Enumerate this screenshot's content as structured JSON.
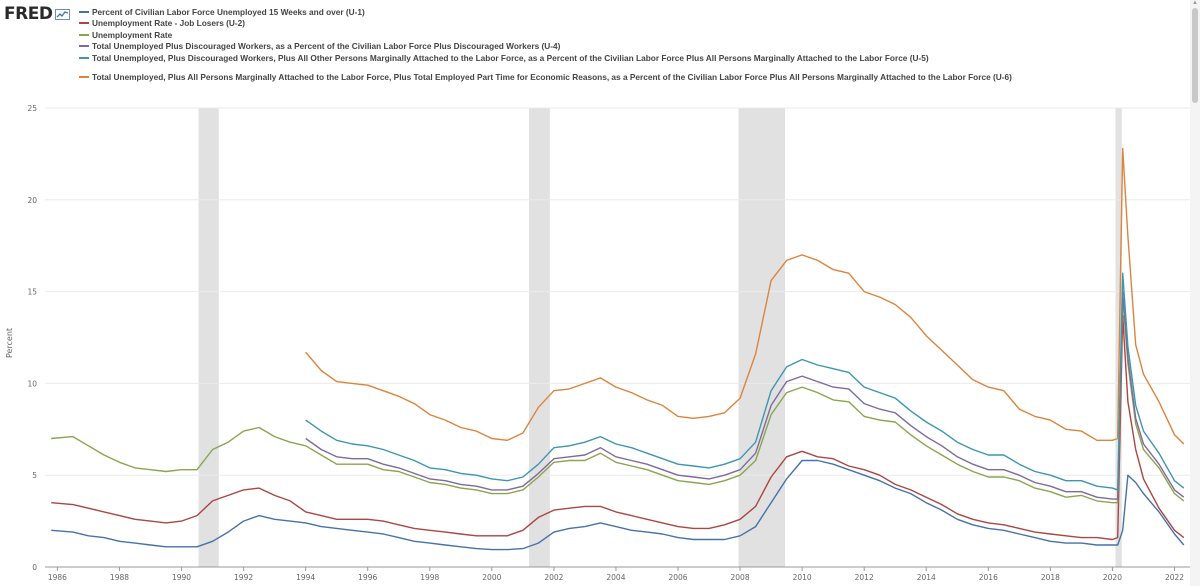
{
  "brand": {
    "logo_text": "FRED",
    "logo_icon": "chart-trend-icon"
  },
  "chart_data": {
    "type": "line",
    "ylabel": "Percent",
    "xlim": [
      1985.6,
      2022.5
    ],
    "ylim": [
      0,
      25
    ],
    "yticks": [
      0,
      5,
      10,
      15,
      20,
      25
    ],
    "xticks": [
      "1986",
      "1988",
      "1990",
      "1992",
      "1994",
      "1996",
      "1998",
      "2000",
      "2002",
      "2004",
      "2006",
      "2008",
      "2010",
      "2012",
      "2014",
      "2016",
      "2018",
      "2020",
      "2022"
    ],
    "grid": true,
    "legend_position": "top-left",
    "recessions": [
      [
        1990.55,
        1991.2
      ],
      [
        2001.2,
        2001.87
      ],
      [
        2007.95,
        2009.45
      ],
      [
        2020.1,
        2020.3
      ]
    ],
    "series": [
      {
        "name": "Percent of Civilian Labor Force Unemployed 15 Weeks and over (U-1)",
        "color": "#4572a7",
        "x": [
          1985.8,
          1986.5,
          1987,
          1987.5,
          1988,
          1988.5,
          1989,
          1989.5,
          1990,
          1990.5,
          1991,
          1991.5,
          1992,
          1992.5,
          1993,
          1993.5,
          1994,
          1994.5,
          1995,
          1995.5,
          1996,
          1996.5,
          1997,
          1997.5,
          1998,
          1998.5,
          1999,
          1999.5,
          2000,
          2000.5,
          2001,
          2001.5,
          2002,
          2002.5,
          2003,
          2003.5,
          2004,
          2004.5,
          2005,
          2005.5,
          2006,
          2006.5,
          2007,
          2007.5,
          2008,
          2008.5,
          2009,
          2009.5,
          2010,
          2010.5,
          2011,
          2011.5,
          2012,
          2012.5,
          2013,
          2013.5,
          2014,
          2014.5,
          2015,
          2015.5,
          2016,
          2016.5,
          2017,
          2017.5,
          2018,
          2018.5,
          2019,
          2019.5,
          2020,
          2020.17,
          2020.33,
          2020.5,
          2020.75,
          2021,
          2021.5,
          2022,
          2022.3
        ],
        "y": [
          2.0,
          1.9,
          1.7,
          1.6,
          1.4,
          1.3,
          1.2,
          1.1,
          1.1,
          1.1,
          1.4,
          1.9,
          2.5,
          2.8,
          2.6,
          2.5,
          2.4,
          2.2,
          2.1,
          2.0,
          1.9,
          1.8,
          1.6,
          1.4,
          1.3,
          1.2,
          1.1,
          1.0,
          0.95,
          0.95,
          1.0,
          1.3,
          1.9,
          2.1,
          2.2,
          2.4,
          2.2,
          2.0,
          1.9,
          1.8,
          1.6,
          1.5,
          1.5,
          1.5,
          1.7,
          2.2,
          3.5,
          4.8,
          5.8,
          5.8,
          5.6,
          5.3,
          5.0,
          4.7,
          4.3,
          4.0,
          3.5,
          3.1,
          2.6,
          2.3,
          2.1,
          2.0,
          1.8,
          1.6,
          1.4,
          1.3,
          1.3,
          1.2,
          1.2,
          1.2,
          2.0,
          5.0,
          4.6,
          4.0,
          3.0,
          1.8,
          1.2
        ]
      },
      {
        "name": "Unemployment Rate - Job Losers (U-2)",
        "color": "#aa4643",
        "x": [
          1985.8,
          1986.5,
          1987,
          1987.5,
          1988,
          1988.5,
          1989,
          1989.5,
          1990,
          1990.5,
          1991,
          1991.5,
          1992,
          1992.5,
          1993,
          1993.5,
          1994,
          1994.5,
          1995,
          1995.5,
          1996,
          1996.5,
          1997,
          1997.5,
          1998,
          1998.5,
          1999,
          1999.5,
          2000,
          2000.5,
          2001,
          2001.5,
          2002,
          2002.5,
          2003,
          2003.5,
          2004,
          2004.5,
          2005,
          2005.5,
          2006,
          2006.5,
          2007,
          2007.5,
          2008,
          2008.5,
          2009,
          2009.5,
          2010,
          2010.5,
          2011,
          2011.5,
          2012,
          2012.5,
          2013,
          2013.5,
          2014,
          2014.5,
          2015,
          2015.5,
          2016,
          2016.5,
          2017,
          2017.5,
          2018,
          2018.5,
          2019,
          2019.5,
          2020,
          2020.17,
          2020.33,
          2020.5,
          2020.75,
          2021,
          2021.5,
          2022,
          2022.3
        ],
        "y": [
          3.5,
          3.4,
          3.2,
          3.0,
          2.8,
          2.6,
          2.5,
          2.4,
          2.5,
          2.8,
          3.6,
          3.9,
          4.2,
          4.3,
          3.9,
          3.6,
          3.0,
          2.8,
          2.6,
          2.6,
          2.6,
          2.5,
          2.3,
          2.1,
          2.0,
          1.9,
          1.8,
          1.7,
          1.7,
          1.7,
          2.0,
          2.7,
          3.1,
          3.2,
          3.3,
          3.3,
          3.0,
          2.8,
          2.6,
          2.4,
          2.2,
          2.1,
          2.1,
          2.3,
          2.6,
          3.3,
          4.9,
          6.0,
          6.3,
          6.0,
          5.9,
          5.5,
          5.3,
          5.0,
          4.5,
          4.2,
          3.8,
          3.4,
          2.9,
          2.6,
          2.4,
          2.3,
          2.1,
          1.9,
          1.8,
          1.7,
          1.6,
          1.6,
          1.5,
          1.6,
          13.7,
          9.0,
          6.4,
          4.8,
          3.2,
          2.0,
          1.6
        ]
      },
      {
        "name": "Unemployment Rate",
        "color": "#89a54e",
        "x": [
          1985.8,
          1986.5,
          1987,
          1987.5,
          1988,
          1988.5,
          1989,
          1989.5,
          1990,
          1990.5,
          1991,
          1991.5,
          1992,
          1992.5,
          1993,
          1993.5,
          1994,
          1994.5,
          1995,
          1995.5,
          1996,
          1996.5,
          1997,
          1997.5,
          1998,
          1998.5,
          1999,
          1999.5,
          2000,
          2000.5,
          2001,
          2001.5,
          2002,
          2002.5,
          2003,
          2003.5,
          2004,
          2004.5,
          2005,
          2005.5,
          2006,
          2006.5,
          2007,
          2007.5,
          2008,
          2008.5,
          2009,
          2009.5,
          2010,
          2010.5,
          2011,
          2011.5,
          2012,
          2012.5,
          2013,
          2013.5,
          2014,
          2014.5,
          2015,
          2015.5,
          2016,
          2016.5,
          2017,
          2017.5,
          2018,
          2018.5,
          2019,
          2019.5,
          2020,
          2020.17,
          2020.33,
          2020.5,
          2020.75,
          2021,
          2021.5,
          2022,
          2022.3
        ],
        "y": [
          7.0,
          7.1,
          6.6,
          6.1,
          5.7,
          5.4,
          5.3,
          5.2,
          5.3,
          5.3,
          6.4,
          6.8,
          7.4,
          7.6,
          7.1,
          6.8,
          6.6,
          6.1,
          5.6,
          5.6,
          5.6,
          5.3,
          5.2,
          4.9,
          4.6,
          4.5,
          4.3,
          4.2,
          4.0,
          4.0,
          4.2,
          4.9,
          5.7,
          5.8,
          5.8,
          6.2,
          5.7,
          5.5,
          5.3,
          5.0,
          4.7,
          4.6,
          4.5,
          4.7,
          5.0,
          5.8,
          8.3,
          9.5,
          9.8,
          9.5,
          9.1,
          9.0,
          8.2,
          8.0,
          7.9,
          7.2,
          6.6,
          6.1,
          5.6,
          5.2,
          4.9,
          4.9,
          4.7,
          4.3,
          4.1,
          3.8,
          3.9,
          3.6,
          3.5,
          3.5,
          14.7,
          11.1,
          7.8,
          6.4,
          5.4,
          4.0,
          3.6
        ]
      },
      {
        "name": "Total Unemployed Plus Discouraged Workers, as a Percent of the Civilian Labor Force Plus Discouraged Workers (U-4)",
        "color": "#80699b",
        "x": [
          1994.0,
          1994.5,
          1995,
          1995.5,
          1996,
          1996.5,
          1997,
          1997.5,
          1998,
          1998.5,
          1999,
          1999.5,
          2000,
          2000.5,
          2001,
          2001.5,
          2002,
          2002.5,
          2003,
          2003.5,
          2004,
          2004.5,
          2005,
          2005.5,
          2006,
          2006.5,
          2007,
          2007.5,
          2008,
          2008.5,
          2009,
          2009.5,
          2010,
          2010.5,
          2011,
          2011.5,
          2012,
          2012.5,
          2013,
          2013.5,
          2014,
          2014.5,
          2015,
          2015.5,
          2016,
          2016.5,
          2017,
          2017.5,
          2018,
          2018.5,
          2019,
          2019.5,
          2020,
          2020.17,
          2020.33,
          2020.5,
          2020.75,
          2021,
          2021.5,
          2022,
          2022.3
        ],
        "y": [
          7.0,
          6.4,
          6.0,
          5.9,
          5.9,
          5.6,
          5.4,
          5.1,
          4.8,
          4.7,
          4.5,
          4.4,
          4.2,
          4.2,
          4.4,
          5.1,
          5.9,
          6.0,
          6.1,
          6.5,
          6.0,
          5.8,
          5.6,
          5.3,
          5.0,
          4.9,
          4.8,
          5.0,
          5.3,
          6.2,
          8.8,
          10.1,
          10.4,
          10.1,
          9.8,
          9.7,
          8.9,
          8.6,
          8.4,
          7.7,
          7.1,
          6.6,
          6.0,
          5.6,
          5.3,
          5.3,
          5.0,
          4.6,
          4.4,
          4.1,
          4.1,
          3.8,
          3.7,
          3.7,
          15.0,
          11.4,
          8.1,
          6.7,
          5.6,
          4.2,
          3.8
        ]
      },
      {
        "name": "Total Unemployed, Plus Discouraged Workers, Plus All Other Persons Marginally Attached to the Labor Force, as a Percent of the Civilian Labor Force Plus All Persons Marginally Attached to the Labor Force (U-5)",
        "color": "#3d96ae",
        "x": [
          1994.0,
          1994.5,
          1995,
          1995.5,
          1996,
          1996.5,
          1997,
          1997.5,
          1998,
          1998.5,
          1999,
          1999.5,
          2000,
          2000.5,
          2001,
          2001.5,
          2002,
          2002.5,
          2003,
          2003.5,
          2004,
          2004.5,
          2005,
          2005.5,
          2006,
          2006.5,
          2007,
          2007.5,
          2008,
          2008.5,
          2009,
          2009.5,
          2010,
          2010.5,
          2011,
          2011.5,
          2012,
          2012.5,
          2013,
          2013.5,
          2014,
          2014.5,
          2015,
          2015.5,
          2016,
          2016.5,
          2017,
          2017.5,
          2018,
          2018.5,
          2019,
          2019.5,
          2020,
          2020.17,
          2020.33,
          2020.5,
          2020.75,
          2021,
          2021.5,
          2022,
          2022.3
        ],
        "y": [
          8.0,
          7.4,
          6.9,
          6.7,
          6.6,
          6.4,
          6.1,
          5.8,
          5.4,
          5.3,
          5.1,
          5.0,
          4.8,
          4.7,
          4.9,
          5.6,
          6.5,
          6.6,
          6.8,
          7.1,
          6.7,
          6.5,
          6.2,
          5.9,
          5.6,
          5.5,
          5.4,
          5.6,
          5.9,
          6.8,
          9.6,
          10.9,
          11.3,
          11.0,
          10.8,
          10.6,
          9.8,
          9.5,
          9.2,
          8.5,
          7.9,
          7.4,
          6.8,
          6.4,
          6.1,
          6.1,
          5.6,
          5.2,
          5.0,
          4.7,
          4.7,
          4.4,
          4.3,
          4.2,
          16.0,
          12.0,
          8.8,
          7.4,
          6.2,
          4.7,
          4.3
        ]
      },
      {
        "name": "Total Unemployed, Plus All Persons Marginally Attached to the Labor Force, Plus Total Employed Part Time for Economic Reasons, as a Percent of the Civilian Labor Force Plus All Persons Marginally Attached to the Labor Force (U-6)",
        "color": "#db843d",
        "x": [
          1994.0,
          1994.5,
          1995,
          1995.5,
          1996,
          1996.5,
          1997,
          1997.5,
          1998,
          1998.5,
          1999,
          1999.5,
          2000,
          2000.5,
          2001,
          2001.5,
          2002,
          2002.5,
          2003,
          2003.5,
          2004,
          2004.5,
          2005,
          2005.5,
          2006,
          2006.5,
          2007,
          2007.5,
          2008,
          2008.5,
          2009,
          2009.5,
          2010,
          2010.5,
          2011,
          2011.5,
          2012,
          2012.5,
          2013,
          2013.5,
          2014,
          2014.5,
          2015,
          2015.5,
          2016,
          2016.5,
          2017,
          2017.5,
          2018,
          2018.5,
          2019,
          2019.5,
          2020,
          2020.17,
          2020.33,
          2020.5,
          2020.75,
          2021,
          2021.5,
          2022,
          2022.3
        ],
        "y": [
          11.7,
          10.7,
          10.1,
          10.0,
          9.9,
          9.6,
          9.3,
          8.9,
          8.3,
          8.0,
          7.6,
          7.4,
          7.0,
          6.9,
          7.3,
          8.7,
          9.6,
          9.7,
          10.0,
          10.3,
          9.8,
          9.5,
          9.1,
          8.8,
          8.2,
          8.1,
          8.2,
          8.4,
          9.2,
          11.6,
          15.6,
          16.7,
          17.0,
          16.7,
          16.2,
          16.0,
          15.0,
          14.7,
          14.3,
          13.6,
          12.6,
          11.8,
          11.0,
          10.2,
          9.8,
          9.6,
          8.6,
          8.2,
          8.0,
          7.5,
          7.4,
          6.9,
          6.9,
          7.0,
          22.8,
          18.0,
          12.1,
          10.5,
          9.0,
          7.2,
          6.7
        ]
      }
    ]
  }
}
